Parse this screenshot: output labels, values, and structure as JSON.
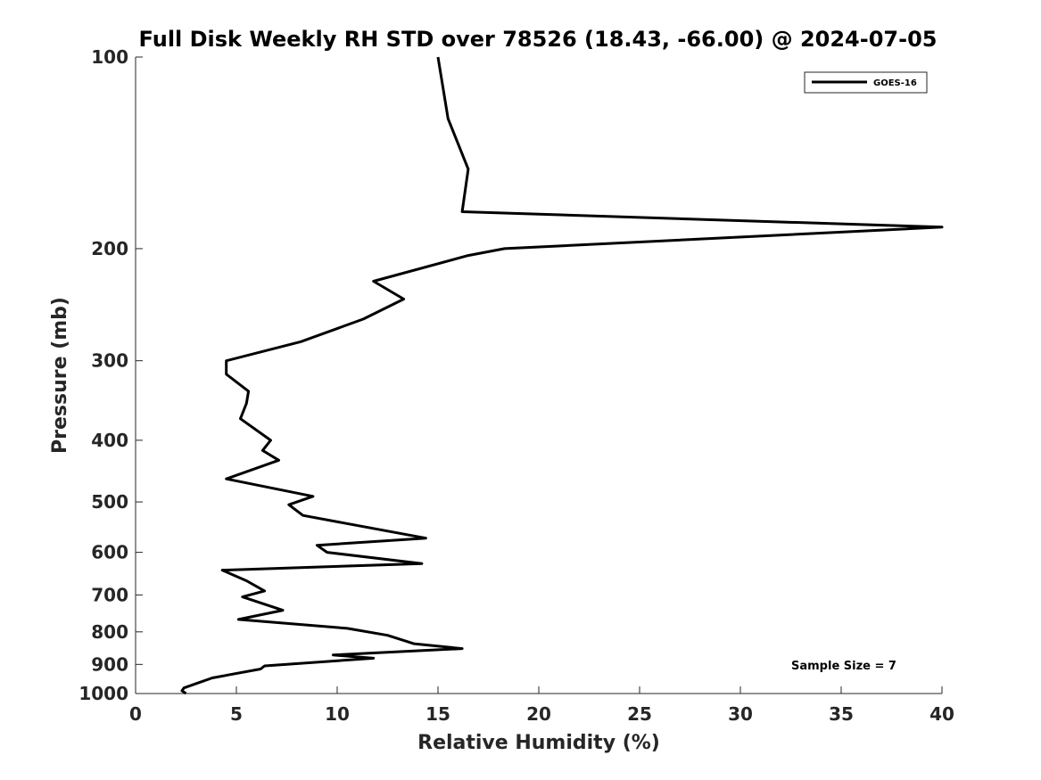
{
  "chart_data": {
    "type": "line",
    "title": "Full Disk Weekly RH STD over 78526 (18.43, -66.00) @ 2024-07-05",
    "xlabel": "Relative Humidity (%)",
    "ylabel": "Pressure (mb)",
    "xlim": [
      0,
      40
    ],
    "ylim": [
      100,
      1000
    ],
    "yscale": "log",
    "y_reversed": true,
    "x_ticks": [
      0,
      5,
      10,
      15,
      20,
      25,
      30,
      35,
      40
    ],
    "x_tick_labels": [
      "0",
      "5",
      "10",
      "15",
      "20",
      "25",
      "30",
      "35",
      "40"
    ],
    "y_ticks": [
      100,
      200,
      300,
      400,
      500,
      600,
      700,
      800,
      900,
      1000
    ],
    "y_tick_labels": [
      "100",
      "200",
      "300",
      "400",
      "500",
      "600",
      "700",
      "800",
      "900",
      "1000"
    ],
    "grid": false,
    "legend_position": "top-right",
    "annotation": "Sample Size = 7",
    "series": [
      {
        "name": "GOES-16",
        "color": "#000000",
        "points": [
          [
            15.0,
            100
          ],
          [
            15.5,
            125
          ],
          [
            16.5,
            150
          ],
          [
            16.2,
            175
          ],
          [
            40.0,
            185
          ],
          [
            18.3,
            200
          ],
          [
            16.5,
            205
          ],
          [
            11.8,
            225
          ],
          [
            13.3,
            240
          ],
          [
            11.3,
            258
          ],
          [
            8.2,
            280
          ],
          [
            4.5,
            300
          ],
          [
            4.5,
            315
          ],
          [
            5.6,
            335
          ],
          [
            5.5,
            350
          ],
          [
            5.2,
            370
          ],
          [
            6.7,
            400
          ],
          [
            6.3,
            415
          ],
          [
            7.1,
            430
          ],
          [
            4.5,
            460
          ],
          [
            8.8,
            490
          ],
          [
            7.6,
            505
          ],
          [
            8.3,
            525
          ],
          [
            14.4,
            570
          ],
          [
            9.0,
            585
          ],
          [
            9.5,
            600
          ],
          [
            14.2,
            625
          ],
          [
            4.3,
            640
          ],
          [
            5.5,
            665
          ],
          [
            6.4,
            690
          ],
          [
            5.3,
            705
          ],
          [
            7.3,
            740
          ],
          [
            5.1,
            765
          ],
          [
            10.5,
            790
          ],
          [
            12.5,
            810
          ],
          [
            13.8,
            835
          ],
          [
            16.2,
            850
          ],
          [
            9.8,
            870
          ],
          [
            11.8,
            880
          ],
          [
            6.4,
            905
          ],
          [
            6.2,
            915
          ],
          [
            3.8,
            945
          ],
          [
            2.4,
            980
          ],
          [
            2.3,
            990
          ],
          [
            2.5,
            1000
          ]
        ]
      }
    ]
  }
}
